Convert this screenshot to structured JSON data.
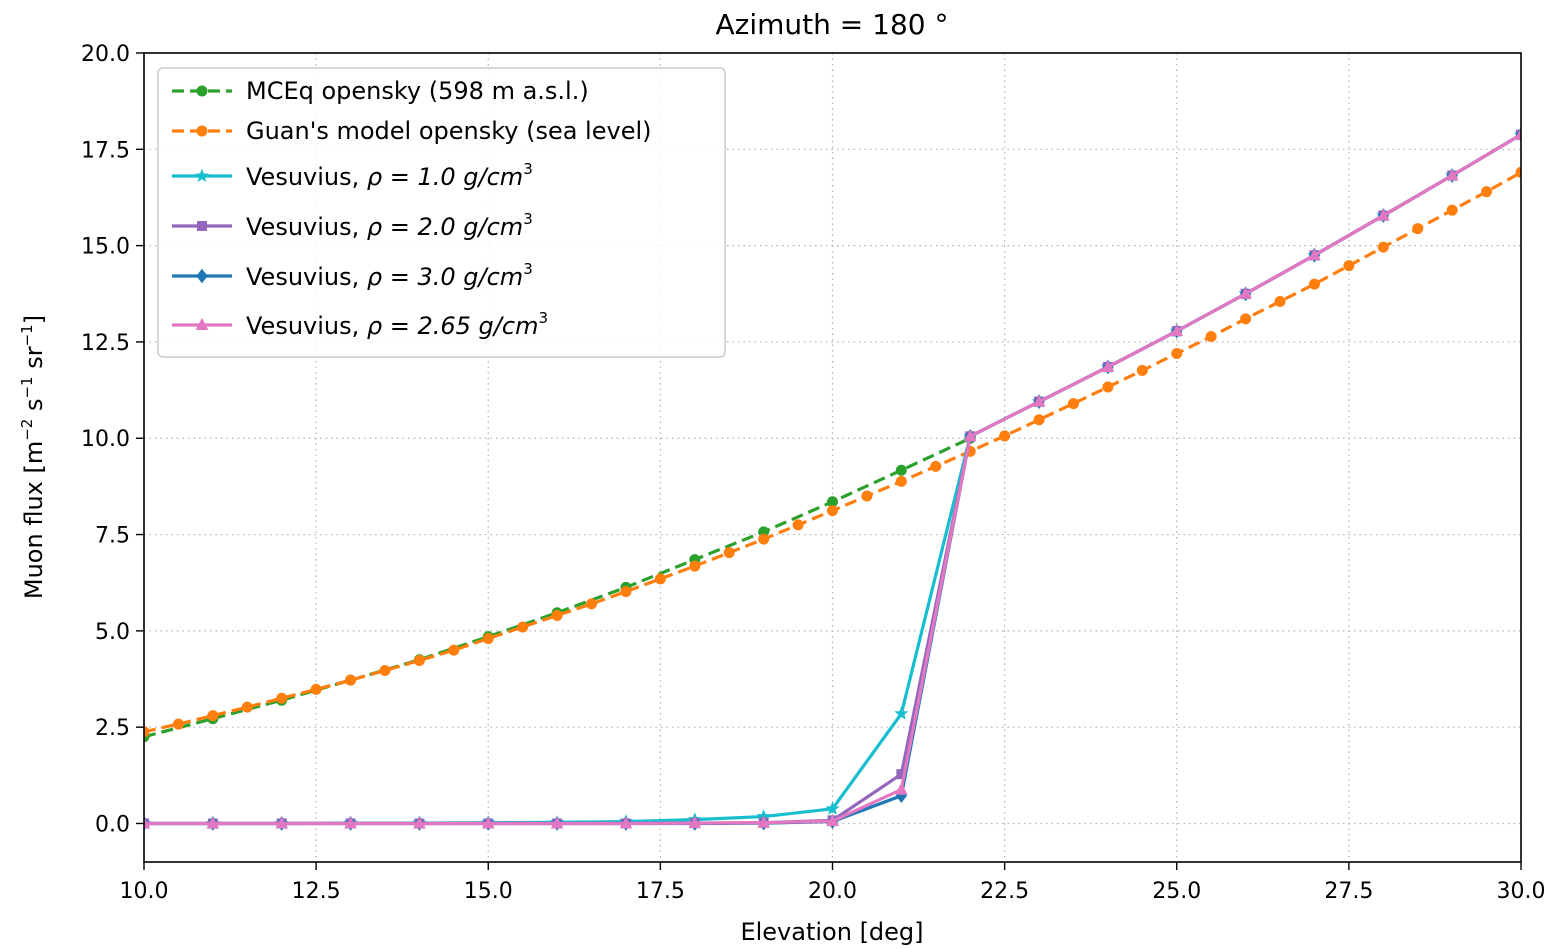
{
  "chart_data": {
    "type": "line",
    "title": "Azimuth = 180 °",
    "xlabel": "Elevation [deg]",
    "ylabel": {
      "base": "Muon flux [m",
      "exp1": "−2",
      "mid1": " s",
      "exp2": "−1",
      "mid2": " sr",
      "exp3": "−1",
      "end": "]"
    },
    "xlim": [
      10.0,
      30.0
    ],
    "ylim": [
      -1.0,
      20.0
    ],
    "xticks": [
      "10.0",
      "12.5",
      "15.0",
      "17.5",
      "20.0",
      "22.5",
      "25.0",
      "27.5",
      "30.0"
    ],
    "yticks": [
      "0.0",
      "2.5",
      "5.0",
      "7.5",
      "10.0",
      "12.5",
      "15.0",
      "17.5",
      "20.0"
    ],
    "grid": true,
    "legend_position": "top-left",
    "series": [
      {
        "name": "MCEq opensky (598 m a.s.l.)",
        "color": "#2ca02c",
        "dashed": true,
        "marker": "circle",
        "x": [
          10,
          11,
          12,
          13,
          14,
          15,
          16,
          17,
          18,
          19,
          20,
          21,
          22
        ],
        "y": [
          2.25,
          2.72,
          3.2,
          3.72,
          4.25,
          4.85,
          5.47,
          6.13,
          6.85,
          7.57,
          8.35,
          9.17,
          10.0
        ]
      },
      {
        "name": "Guan's model opensky (sea level)",
        "color": "#ff7f0e",
        "dashed": true,
        "marker": "circle",
        "x": [
          10,
          10.5,
          11,
          11.5,
          12,
          12.5,
          13,
          13.5,
          14,
          14.5,
          15,
          15.5,
          16,
          16.5,
          17,
          17.5,
          18,
          18.5,
          19,
          19.5,
          20,
          20.5,
          21,
          21.5,
          22,
          22.5,
          23,
          23.5,
          24,
          24.5,
          25,
          25.5,
          26,
          26.5,
          27,
          27.5,
          28,
          28.5,
          29,
          29.5,
          30
        ],
        "y": [
          2.38,
          2.58,
          2.8,
          3.02,
          3.25,
          3.48,
          3.72,
          3.97,
          4.23,
          4.5,
          4.8,
          5.1,
          5.4,
          5.7,
          6.02,
          6.35,
          6.68,
          7.03,
          7.38,
          7.75,
          8.12,
          8.5,
          8.88,
          9.27,
          9.66,
          10.06,
          10.48,
          10.9,
          11.33,
          11.76,
          12.2,
          12.64,
          13.1,
          13.55,
          14.0,
          14.48,
          14.96,
          15.44,
          15.92,
          16.4,
          16.9
        ]
      },
      {
        "name_base": "Vesuvius, ",
        "name_math": "ρ = 1.0 g/cm",
        "name_sup": "3",
        "color": "#17becf",
        "dashed": false,
        "marker": "star",
        "x": [
          10,
          11,
          12,
          13,
          14,
          15,
          16,
          17,
          18,
          19,
          20,
          21,
          22,
          23,
          24,
          25,
          26,
          27,
          28,
          29,
          30
        ],
        "y": [
          0.0,
          0.0,
          0.0,
          0.01,
          0.01,
          0.02,
          0.03,
          0.05,
          0.1,
          0.18,
          0.38,
          2.85,
          10.05,
          10.95,
          11.85,
          12.78,
          13.75,
          14.75,
          15.78,
          16.82,
          17.88
        ]
      },
      {
        "name_base": "Vesuvius, ",
        "name_math": "ρ = 2.0 g/cm",
        "name_sup": "3",
        "color": "#9467bd",
        "dashed": false,
        "marker": "square",
        "x": [
          10,
          11,
          12,
          13,
          14,
          15,
          16,
          17,
          18,
          19,
          20,
          21,
          22,
          23,
          24,
          25,
          26,
          27,
          28,
          29,
          30
        ],
        "y": [
          0.0,
          0.0,
          0.0,
          0.0,
          0.0,
          0.0,
          0.0,
          0.0,
          0.01,
          0.02,
          0.08,
          1.28,
          10.05,
          10.95,
          11.85,
          12.78,
          13.75,
          14.75,
          15.78,
          16.82,
          17.88
        ]
      },
      {
        "name_base": "Vesuvius, ",
        "name_math": "ρ = 3.0 g/cm",
        "name_sup": "3",
        "color": "#1f77b4",
        "dashed": false,
        "marker": "diamond",
        "x": [
          10,
          11,
          12,
          13,
          14,
          15,
          16,
          17,
          18,
          19,
          20,
          21,
          22,
          23,
          24,
          25,
          26,
          27,
          28,
          29,
          30
        ],
        "y": [
          0.0,
          0.0,
          0.0,
          0.0,
          0.0,
          0.0,
          0.0,
          0.0,
          0.0,
          0.01,
          0.05,
          0.72,
          10.05,
          10.95,
          11.85,
          12.78,
          13.75,
          14.75,
          15.78,
          16.82,
          17.88
        ]
      },
      {
        "name_base": "Vesuvius, ",
        "name_math": "ρ = 2.65 g/cm",
        "name_sup": "3",
        "color": "#e377c2",
        "dashed": false,
        "marker": "triangle",
        "x": [
          10,
          11,
          12,
          13,
          14,
          15,
          16,
          17,
          18,
          19,
          20,
          21,
          22,
          23,
          24,
          25,
          26,
          27,
          28,
          29,
          30
        ],
        "y": [
          0.0,
          0.0,
          0.0,
          0.0,
          0.0,
          0.0,
          0.0,
          0.0,
          0.01,
          0.02,
          0.06,
          0.88,
          10.05,
          10.95,
          11.85,
          12.78,
          13.75,
          14.75,
          15.78,
          16.82,
          17.88
        ]
      }
    ]
  }
}
